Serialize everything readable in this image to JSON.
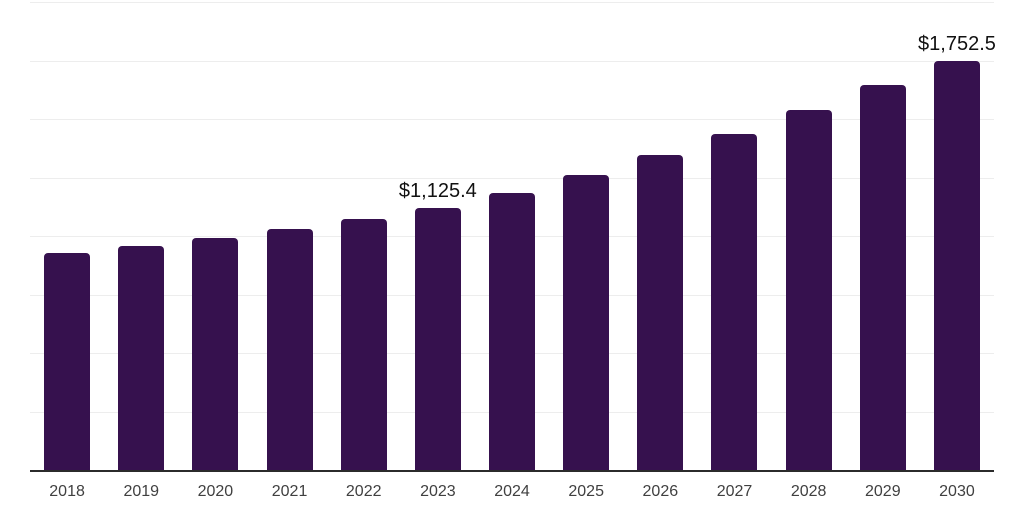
{
  "chart_data": {
    "type": "bar",
    "categories": [
      "2018",
      "2019",
      "2020",
      "2021",
      "2022",
      "2023",
      "2024",
      "2025",
      "2026",
      "2027",
      "2028",
      "2029",
      "2030"
    ],
    "values": [
      930,
      962,
      997,
      1034,
      1078,
      1125.4,
      1190,
      1265,
      1350,
      1440,
      1541,
      1650,
      1752.5
    ],
    "data_labels": [
      "",
      "",
      "",
      "",
      "",
      "$1,125.4",
      "",
      "",
      "",
      "",
      "",
      "",
      "$1,752.5"
    ],
    "title": "",
    "xlabel": "",
    "ylabel": "",
    "ylim": [
      0,
      2000
    ],
    "gridline_step": 250,
    "grid": "horizontal",
    "legend": "none",
    "colors": {
      "bar": "#36114E",
      "axis": "#2B2B2B",
      "gridline": "#EDEDED",
      "tick_label": "#404040",
      "data_label": "#111111",
      "background": "#FFFFFF"
    }
  }
}
